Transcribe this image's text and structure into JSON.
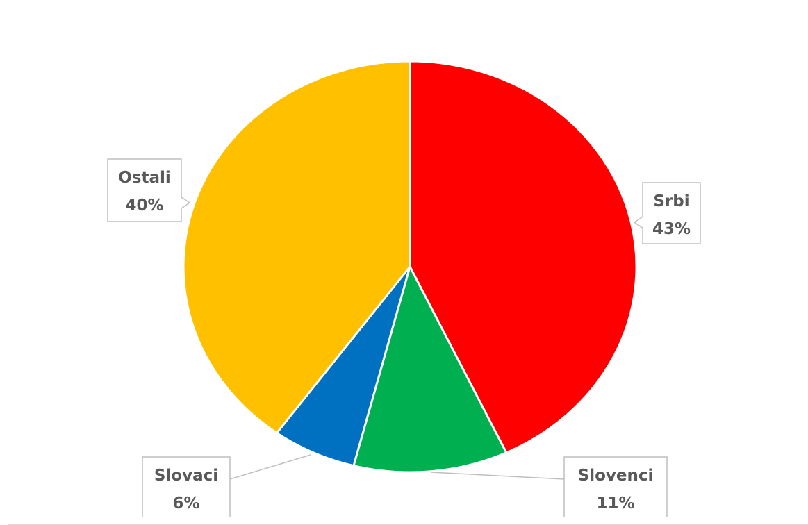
{
  "chart_data": {
    "type": "pie",
    "title": "",
    "slices": [
      {
        "label": "Srbi",
        "value": 43,
        "percent_label": "43%",
        "color": "#ff0000"
      },
      {
        "label": "Slovenci",
        "value": 11,
        "percent_label": "11%",
        "color": "#00b050"
      },
      {
        "label": "Slovaci",
        "value": 6,
        "percent_label": "6%",
        "color": "#0070c0"
      },
      {
        "label": "Ostali",
        "value": 40,
        "percent_label": "40%",
        "color": "#ffc000"
      }
    ],
    "start_angle": "12 o'clock",
    "direction": "clockwise",
    "legend": "none",
    "data_labels": "callouts with category name and percentage"
  }
}
